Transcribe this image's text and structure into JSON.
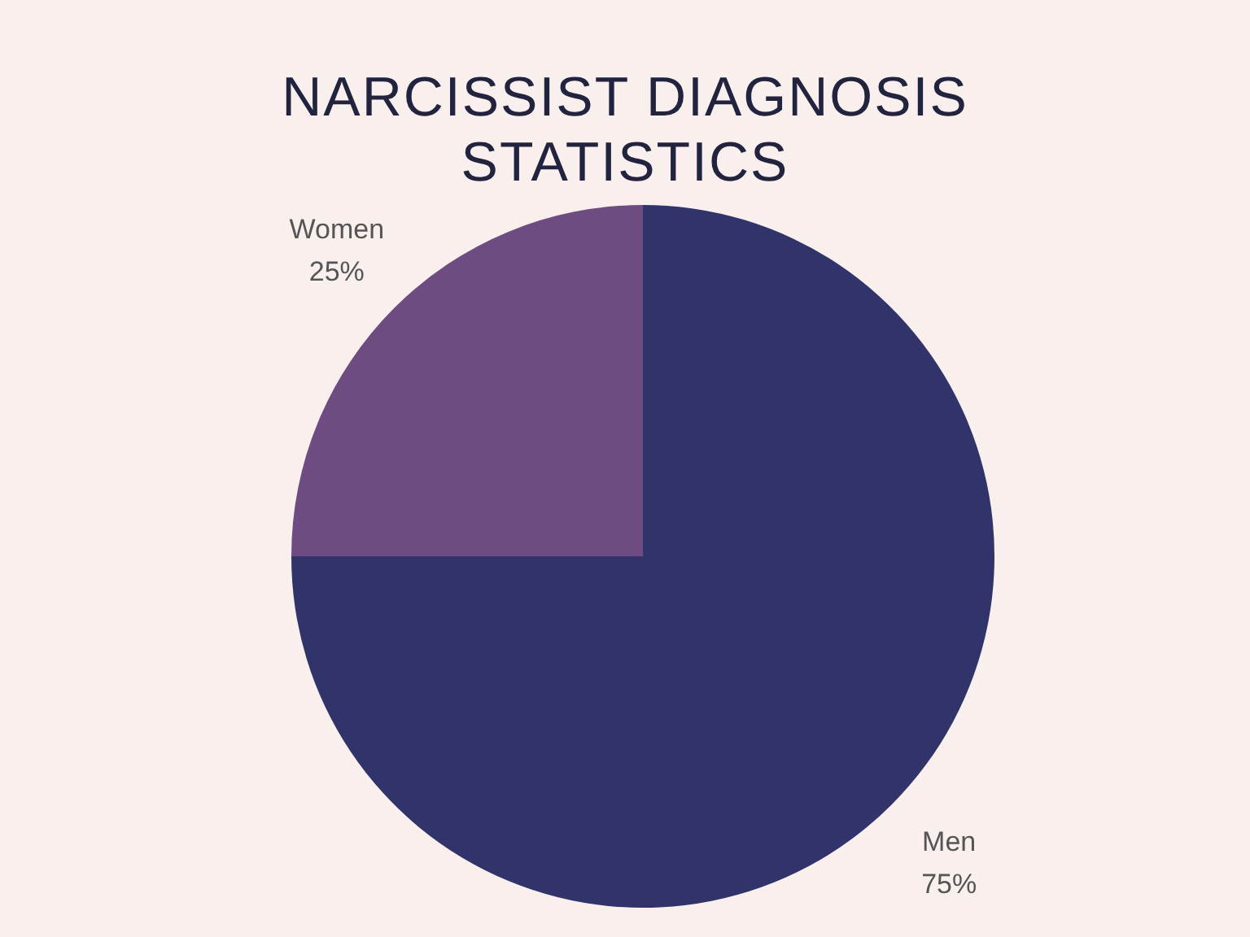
{
  "chart_data": {
    "type": "pie",
    "title": "NARCISSIST DIAGNOSIS STATISTICS",
    "categories": [
      "Men",
      "Women"
    ],
    "values": [
      75,
      25
    ],
    "colors": [
      "#30346a",
      "#6e4b80"
    ],
    "value_labels": [
      "75%",
      "25%"
    ]
  }
}
